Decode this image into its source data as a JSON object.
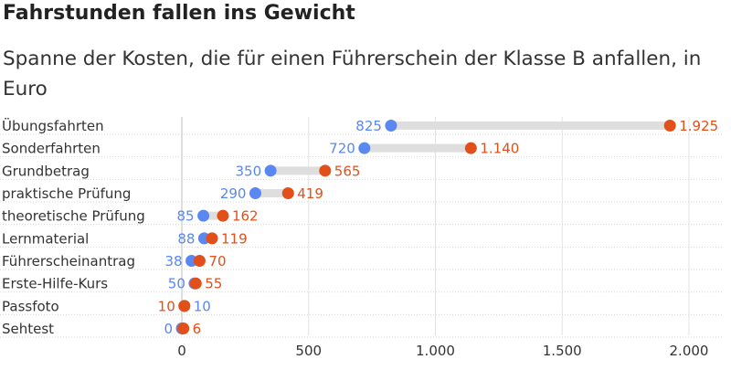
{
  "title": "Fahrstunden fallen ins Gewicht",
  "subtitle": "Spanne der Kosten, die für einen Führerschein der Klasse B anfallen, in Euro",
  "colors": {
    "min": "#5a87f0",
    "max": "#e34f19",
    "connector": "#dedede",
    "grid": "#e3e3e3"
  },
  "chart_data": {
    "type": "dumbbell",
    "title": "Fahrstunden fallen ins Gewicht",
    "subtitle": "Spanne der Kosten, die für einen Führerschein der Klasse B anfallen, in Euro",
    "categories": [
      "Übungsfahrten",
      "Sonderfahrten",
      "Grundbetrag",
      "praktische Prüfung",
      "theoretische Prüfung",
      "Lernmaterial",
      "Führerscheinantrag",
      "Erste-Hilfe-Kurs",
      "Passfoto",
      "Sehtest"
    ],
    "series": [
      {
        "values": [
          825,
          720,
          350,
          290,
          85,
          88,
          38,
          50,
          10,
          0
        ],
        "labels": [
          "825",
          "720",
          "350",
          "290",
          "85",
          "88",
          "38",
          "50",
          "10",
          "0"
        ]
      },
      {
        "values": [
          1925,
          1140,
          565,
          419,
          162,
          119,
          70,
          55,
          10,
          6
        ],
        "labels": [
          "1.925",
          "1.140",
          "565",
          "419",
          "162",
          "119",
          "70",
          "55",
          "10",
          "6"
        ]
      }
    ],
    "xlim": [
      0,
      2100
    ],
    "xticks": [
      0,
      500,
      1000,
      1500,
      2000
    ],
    "xtick_labels": [
      "0",
      "500",
      "1.000",
      "1.500",
      "2.000"
    ],
    "grid": true
  }
}
